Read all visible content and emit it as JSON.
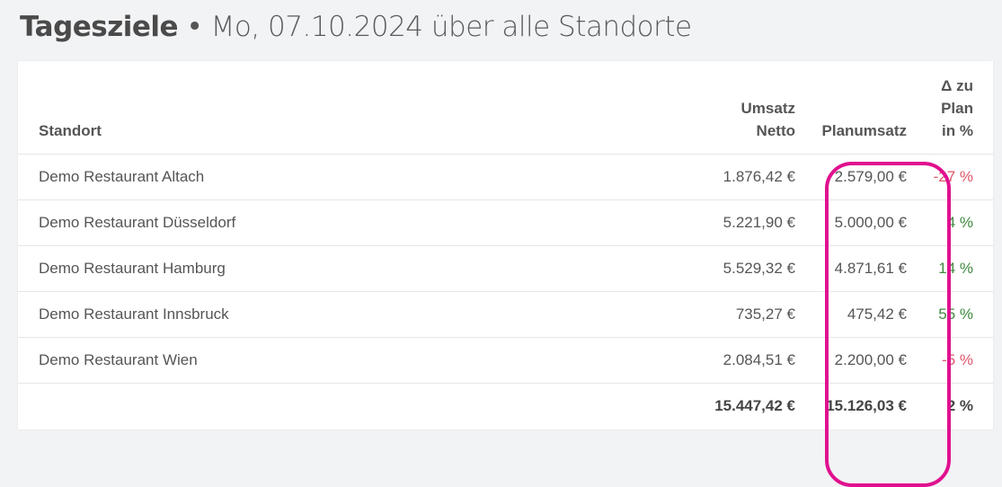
{
  "header": {
    "title": "Tagesziele",
    "separator": "•",
    "subtitle": "Mo, 07.10.2024 über alle Standorte"
  },
  "table": {
    "columns": {
      "location": "Standort",
      "revenue_line1": "Umsatz",
      "revenue_line2": "Netto",
      "plan": "Planumsatz",
      "delta_line1": "Δ zu",
      "delta_line2": "Plan",
      "delta_line3": "in %"
    },
    "rows": [
      {
        "location": "Demo Restaurant Altach",
        "revenue": "1.876,42 €",
        "plan": "2.579,00 €",
        "delta": "-27 %",
        "status": "negative"
      },
      {
        "location": "Demo Restaurant Düsseldorf",
        "revenue": "5.221,90 €",
        "plan": "5.000,00 €",
        "delta": "4 %",
        "status": "positive"
      },
      {
        "location": "Demo Restaurant Hamburg",
        "revenue": "5.529,32 €",
        "plan": "4.871,61 €",
        "delta": "14 %",
        "status": "positive"
      },
      {
        "location": "Demo Restaurant Innsbruck",
        "revenue": "735,27 €",
        "plan": "475,42 €",
        "delta": "55 %",
        "status": "positive"
      },
      {
        "location": "Demo Restaurant Wien",
        "revenue": "2.084,51 €",
        "plan": "2.200,00 €",
        "delta": "-5 %",
        "status": "negative"
      }
    ],
    "total": {
      "revenue": "15.447,42 €",
      "plan": "15.126,03 €",
      "delta": "2 %",
      "status": "positive"
    }
  },
  "colors": {
    "negative": "#e0566a",
    "positive": "#3f8a3f",
    "highlight": "#e0108f"
  }
}
